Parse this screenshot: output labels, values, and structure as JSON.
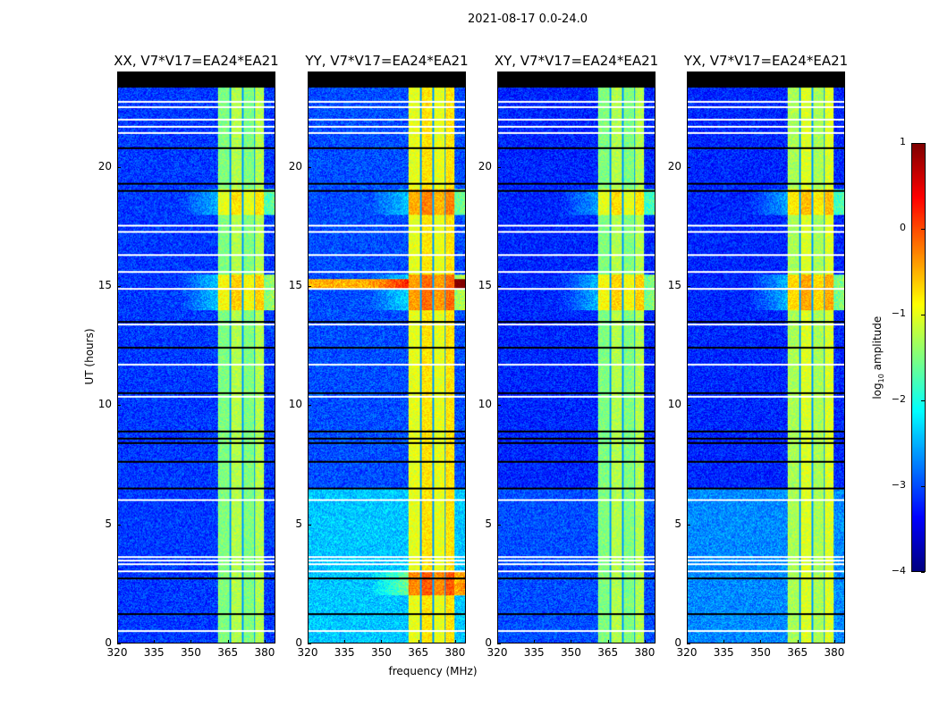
{
  "chart_data": {
    "type": "heatmap",
    "title": "2021-08-17 0.0-24.0",
    "xlabel": "frequency (MHz)",
    "ylabel": "UT (hours)",
    "xlim": [
      320,
      384.4
    ],
    "ylim": [
      0,
      24
    ],
    "xticks": [
      "320",
      "335",
      "350",
      "365",
      "380"
    ],
    "xtick_values": [
      320,
      335,
      350,
      365,
      380
    ],
    "yticks": [
      "0",
      "5",
      "10",
      "15",
      "20"
    ],
    "ytick_values": [
      0,
      5,
      10,
      15,
      20
    ],
    "panels": [
      {
        "title": "XX, V7*V17=EA24*EA21",
        "background_level": -3.1,
        "band_level": -1.4,
        "lower_background_level": -3.1
      },
      {
        "title": "YY, V7*V17=EA24*EA21",
        "background_level": -3.0,
        "band_level": -0.9,
        "lower_background_level": -2.4
      },
      {
        "title": "XY, V7*V17=EA24*EA21",
        "background_level": -3.2,
        "band_level": -1.4,
        "lower_background_level": -3.0
      },
      {
        "title": "YX, V7*V17=EA24*EA21",
        "background_level": -3.2,
        "band_level": -1.2,
        "lower_background_level": -2.7
      }
    ],
    "bright_band_mhz": [
      361,
      380
    ],
    "band_gaps_mhz": [
      366.2,
      371.2,
      376.2
    ],
    "flagged_white_rows_hours": [
      0.5,
      3.0,
      3.3,
      3.45,
      3.6,
      6.0,
      10.35,
      11.7,
      13.4,
      14.9,
      15.6,
      16.3,
      17.3,
      17.55,
      21.45,
      21.7,
      22.0,
      22.55,
      22.75
    ],
    "black_rows_hours": [
      1.2,
      2.7,
      6.5,
      7.6,
      8.4,
      8.6,
      8.9,
      10.5,
      12.4,
      13.5,
      19.0,
      19.3,
      20.8,
      23.4
    ],
    "no_data_above_hours": 23.4,
    "colorbar": {
      "label": "log10 amplitude",
      "label_main": "log",
      "label_sub": "10",
      "label_rest": " amplitude",
      "colormap": "jet",
      "range": [
        -4,
        1
      ],
      "ticks": [
        "1",
        "0",
        "−1",
        "−2",
        "−3",
        "−4"
      ],
      "tick_values": [
        1,
        0,
        -1,
        -2,
        -3,
        -4
      ]
    }
  }
}
